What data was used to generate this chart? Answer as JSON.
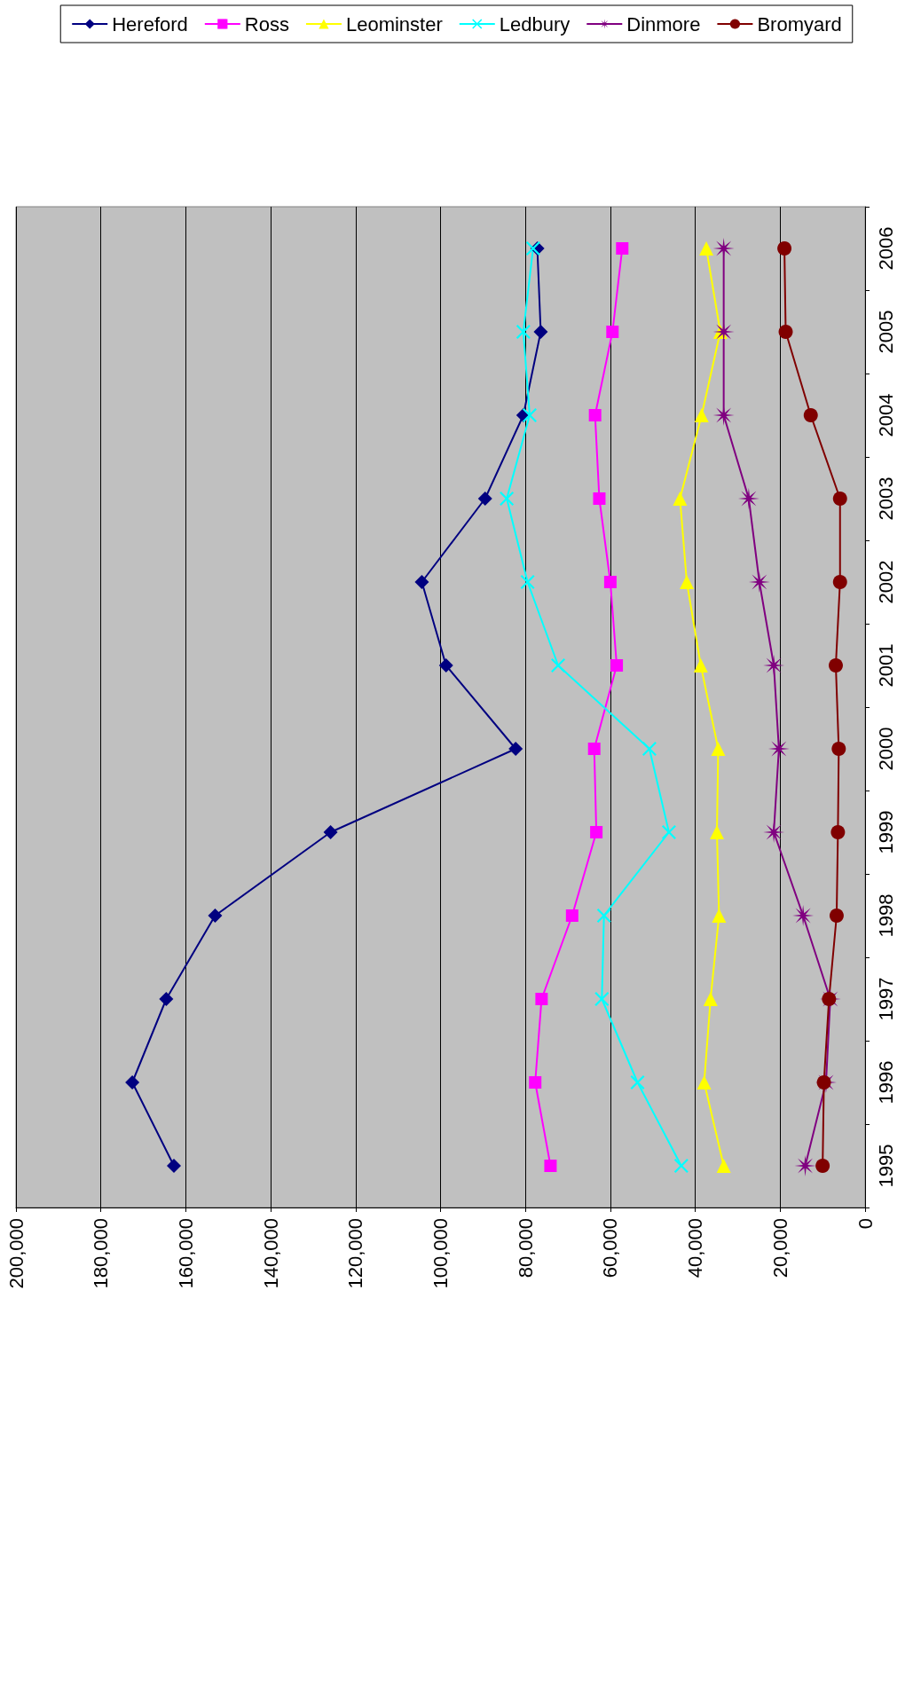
{
  "chart_data": {
    "type": "line",
    "orientation": "horizontal",
    "categories": [
      "2006",
      "2005",
      "2004",
      "2003",
      "2002",
      "2001",
      "2000",
      "1999",
      "1998",
      "1997",
      "1996",
      "1995"
    ],
    "series": [
      {
        "name": "Hereford",
        "color": "#000080",
        "marker": "diamond",
        "values": [
          77200,
          76400,
          80500,
          89500,
          104400,
          98700,
          82300,
          125900,
          153100,
          164600,
          172600,
          162800
        ]
      },
      {
        "name": "Ross",
        "color": "#ff00ff",
        "marker": "square",
        "values": [
          57200,
          59500,
          63600,
          62600,
          60000,
          58500,
          63800,
          63300,
          69000,
          76200,
          77700,
          74100
        ]
      },
      {
        "name": "Leominster",
        "color": "#ffff00",
        "marker": "triangle",
        "values": [
          37400,
          34100,
          38500,
          43600,
          42000,
          38700,
          34600,
          34900,
          34400,
          36400,
          37900,
          33300
        ]
      },
      {
        "name": "Ledbury",
        "color": "#00ffff",
        "marker": "cross",
        "values": [
          78200,
          80500,
          79000,
          84400,
          79500,
          72300,
          50800,
          46200,
          61500,
          62000,
          53600,
          43300
        ]
      },
      {
        "name": "Dinmore",
        "color": "#800080",
        "marker": "star",
        "values": [
          33300,
          33300,
          33300,
          27400,
          24900,
          21500,
          20300,
          21500,
          14600,
          8200,
          9200,
          14100
        ]
      },
      {
        "name": "Bromyard",
        "color": "#800000",
        "marker": "circle",
        "values": [
          19000,
          18700,
          12800,
          5900,
          5900,
          6900,
          6200,
          6400,
          6700,
          8500,
          9700,
          10000
        ]
      }
    ],
    "xlim": [
      200000,
      0
    ],
    "xticks": [
      0,
      {
        "value": 20000,
        "label": "20,000"
      },
      {
        "value": 40000,
        "label": "40,000"
      },
      {
        "value": 60000,
        "label": "60,000"
      },
      {
        "value": 80000,
        "label": "80,000"
      },
      {
        "value": 100000,
        "label": "100,000"
      },
      {
        "value": 120000,
        "label": "120,000"
      },
      {
        "value": 140000,
        "label": "140,000"
      },
      {
        "value": 160000,
        "label": "160,000"
      },
      {
        "value": 180000,
        "label": "180,000"
      },
      {
        "value": 200000,
        "label": "200,000"
      }
    ],
    "grid": "x",
    "legend": "top",
    "line_style": "solid"
  }
}
